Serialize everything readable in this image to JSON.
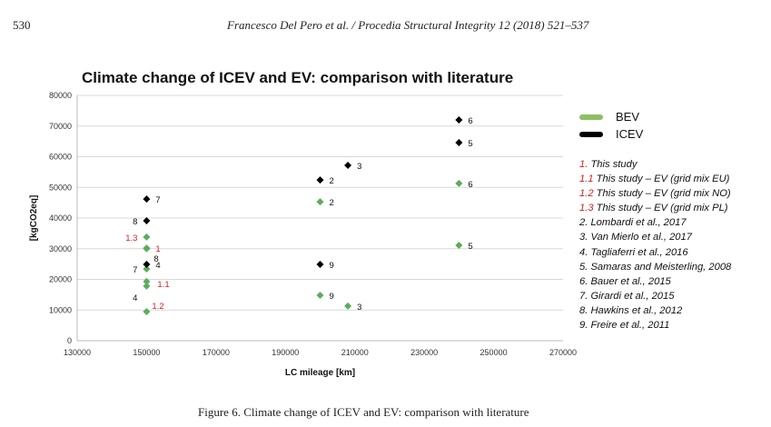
{
  "header": {
    "page_number": "530",
    "running_title": "Francesco Del Pero  et al. / Procedia Structural Integrity 12 (2018) 521–537"
  },
  "caption": "Figure 6. Climate change of ICEV and EV: comparison with literature",
  "chart_data": {
    "type": "scatter",
    "title": "Climate change of ICEV and EV: comparison with literature",
    "xlabel": "LC mileage [km]",
    "ylabel": "[kgCO2eq]",
    "xlim": [
      130000,
      270000
    ],
    "ylim": [
      0,
      80000
    ],
    "xticks": [
      130000,
      150000,
      170000,
      190000,
      210000,
      230000,
      250000,
      270000
    ],
    "yticks": [
      0,
      10000,
      20000,
      30000,
      40000,
      50000,
      60000,
      70000,
      80000
    ],
    "grid": "horizontal",
    "legend_placement": "right",
    "series": [
      {
        "name": "BEV",
        "color": "#5aae5a",
        "legend_color": "#8cc063",
        "points": [
          {
            "x": 150000,
            "y": 33800,
            "label": "1.3",
            "label_side": "left",
            "label_color": "#d21f1f"
          },
          {
            "x": 150000,
            "y": 30200,
            "label": "1",
            "label_side": "right",
            "label_color": "#d21f1f"
          },
          {
            "x": 150000,
            "y": 30000,
            "label": "8",
            "label_side": "below-right",
            "label_color": "#111111"
          },
          {
            "x": 150000,
            "y": 23400,
            "label": "7",
            "label_side": "left",
            "label_color": "#111111"
          },
          {
            "x": 150000,
            "y": 19300,
            "label": "1.1",
            "label_side": "right-low",
            "label_color": "#d21f1f"
          },
          {
            "x": 150000,
            "y": 17800,
            "label": "4",
            "label_side": "below-left",
            "label_color": "#111111"
          },
          {
            "x": 150000,
            "y": 9500,
            "label": "1.2",
            "label_side": "above-right",
            "label_color": "#d21f1f"
          },
          {
            "x": 200000,
            "y": 45300,
            "label": "2",
            "label_side": "right",
            "label_color": "#111111"
          },
          {
            "x": 200000,
            "y": 14800,
            "label": "9",
            "label_side": "right",
            "label_color": "#111111"
          },
          {
            "x": 208000,
            "y": 11300,
            "label": "3",
            "label_side": "right",
            "label_color": "#111111"
          },
          {
            "x": 240000,
            "y": 51300,
            "label": "6",
            "label_side": "right",
            "label_color": "#111111"
          },
          {
            "x": 240000,
            "y": 31100,
            "label": "5",
            "label_side": "right",
            "label_color": "#111111"
          }
        ]
      },
      {
        "name": "ICEV",
        "color": "#000000",
        "legend_color": "#000000",
        "points": [
          {
            "x": 150000,
            "y": 46200,
            "label": "7",
            "label_side": "right",
            "label_color": "#111111"
          },
          {
            "x": 150000,
            "y": 39100,
            "label": "8",
            "label_side": "left",
            "label_color": "#111111"
          },
          {
            "x": 150000,
            "y": 24900,
            "label": "4",
            "label_side": "right",
            "label_color": "#111111"
          },
          {
            "x": 200000,
            "y": 52400,
            "label": "2",
            "label_side": "right",
            "label_color": "#111111"
          },
          {
            "x": 200000,
            "y": 24900,
            "label": "9",
            "label_side": "right",
            "label_color": "#111111"
          },
          {
            "x": 208000,
            "y": 57200,
            "label": "3",
            "label_side": "right",
            "label_color": "#111111"
          },
          {
            "x": 240000,
            "y": 72000,
            "label": "6",
            "label_side": "right",
            "label_color": "#111111"
          },
          {
            "x": 240000,
            "y": 64600,
            "label": "5",
            "label_side": "right",
            "label_color": "#111111"
          }
        ]
      }
    ],
    "references": [
      {
        "num": "1.",
        "text": "This study"
      },
      {
        "num": "1.1",
        "text": "This study – EV (grid mix EU)"
      },
      {
        "num": "1.2",
        "text": "This study – EV (grid mix NO)"
      },
      {
        "num": "1.3",
        "text": "This study – EV (grid mix PL)"
      },
      {
        "num": "",
        "text": "2. Lombardi  et al., 2017"
      },
      {
        "num": "",
        "text": "3. Van Mierlo et al., 2017"
      },
      {
        "num": "",
        "text": "4. Tagliaferri et al., 2016"
      },
      {
        "num": "",
        "text": "5. Samaras and Meisterling, 2008"
      },
      {
        "num": "",
        "text": "6. Bauer et al., 2015"
      },
      {
        "num": "",
        "text": "7. Girardi et al., 2015"
      },
      {
        "num": "",
        "text": "8. Hawkins et al., 2012"
      },
      {
        "num": "",
        "text": "9. Freire et al., 2011"
      }
    ]
  }
}
